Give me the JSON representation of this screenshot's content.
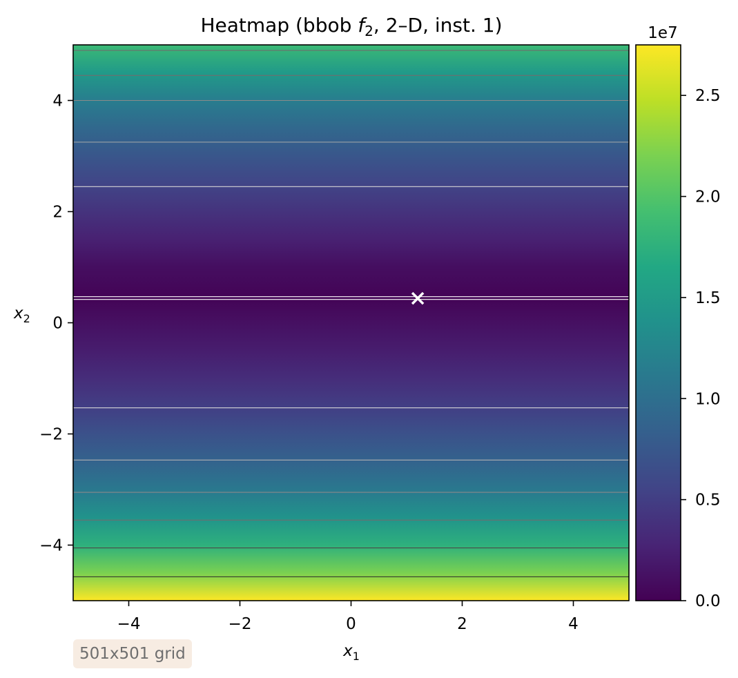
{
  "chart_data": {
    "type": "heatmap",
    "title": "Heatmap (bbob f2, 2–D, inst. 1)",
    "title_parts": {
      "prefix": "Heatmap (bbob ",
      "func": "f",
      "func_sub": "2",
      "suffix": ", 2–D, inst. 1)"
    },
    "xlabel": {
      "base": "x",
      "sub": "1"
    },
    "ylabel": {
      "base": "x",
      "sub": "2"
    },
    "xlim": [
      -5,
      5
    ],
    "ylim": [
      -5,
      5
    ],
    "xticks": [
      -4,
      -2,
      0,
      2,
      4
    ],
    "xtick_labels": [
      "−4",
      "−2",
      "0",
      "2",
      "4"
    ],
    "yticks": [
      -4,
      -2,
      0,
      2,
      4
    ],
    "ytick_labels": [
      "−4",
      "−2",
      "0",
      "2",
      "4"
    ],
    "colormap": "viridis",
    "colorbar": {
      "range": [
        0,
        27500000
      ],
      "ticks": [
        0,
        5000000,
        10000000,
        15000000,
        20000000,
        25000000
      ],
      "tick_labels": [
        "0.0",
        "0.5",
        "1.0",
        "1.5",
        "2.0",
        "2.5"
      ],
      "offset_label": "1e7"
    },
    "value_profile_x2": [
      [
        -5.0,
        27500000
      ],
      [
        -4.5,
        22000000
      ],
      [
        -4.0,
        17500000
      ],
      [
        -3.5,
        14000000
      ],
      [
        -3.0,
        11000000
      ],
      [
        -2.5,
        8700000
      ],
      [
        -2.0,
        6800000
      ],
      [
        -1.5,
        5000000
      ],
      [
        -1.0,
        3500000
      ],
      [
        -0.5,
        2200000
      ],
      [
        0.0,
        1200000
      ],
      [
        0.45,
        200000
      ],
      [
        1.0,
        1000000
      ],
      [
        1.5,
        2500000
      ],
      [
        2.0,
        4000000
      ],
      [
        2.5,
        5600000
      ],
      [
        3.0,
        7300000
      ],
      [
        3.5,
        9200000
      ],
      [
        4.0,
        11500000
      ],
      [
        4.5,
        14800000
      ],
      [
        5.0,
        18500000
      ]
    ],
    "contour_levels_x2": [
      {
        "x2": 4.9,
        "color": "#6e6e6e"
      },
      {
        "x2": 4.45,
        "color": "#6e6e6e"
      },
      {
        "x2": 4.0,
        "color": "#8a8a8a"
      },
      {
        "x2": 3.25,
        "color": "#a8a8a8"
      },
      {
        "x2": 2.45,
        "color": "#d4d4d4"
      },
      {
        "x2": 0.47,
        "color": "#ffffff"
      },
      {
        "x2": 0.42,
        "color": "#ffffff"
      },
      {
        "x2": -1.53,
        "color": "#d8d8d8"
      },
      {
        "x2": -2.47,
        "color": "#b0b0b0"
      },
      {
        "x2": -3.05,
        "color": "#8a8a8a"
      },
      {
        "x2": -3.55,
        "color": "#6e6e6e"
      },
      {
        "x2": -4.05,
        "color": "#4a4a4a"
      },
      {
        "x2": -4.57,
        "color": "#2a2a2a"
      }
    ],
    "optimum_marker": {
      "x1": 1.2,
      "x2": 0.44,
      "symbol": "x",
      "color": "#ffffff"
    }
  },
  "annotation": {
    "grid_label": "501x501 grid"
  }
}
